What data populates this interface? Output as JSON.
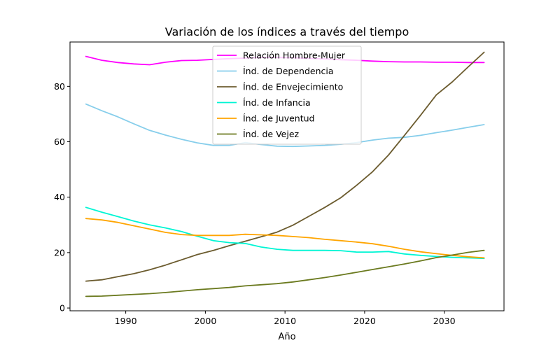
{
  "chart_data": {
    "type": "line",
    "title": "Variación de los índices a través del tiempo",
    "xlabel": "Año",
    "ylabel": "",
    "xlim": [
      1983,
      2037.5
    ],
    "ylim": [
      -1,
      96
    ],
    "xticks": [
      1990,
      2000,
      2010,
      2020,
      2030
    ],
    "yticks": [
      0,
      20,
      40,
      60,
      80
    ],
    "grid": false,
    "legend_position": "top-center",
    "x": [
      1985,
      1987,
      1989,
      1991,
      1993,
      1995,
      1997,
      1999,
      2001,
      2003,
      2005,
      2007,
      2009,
      2011,
      2013,
      2015,
      2017,
      2019,
      2021,
      2023,
      2025,
      2027,
      2029,
      2031,
      2033,
      2035
    ],
    "series": [
      {
        "name": "Relación Hombre-Mujer",
        "color": "#ff00ff",
        "values": [
          90.8,
          89.4,
          88.6,
          88.1,
          87.8,
          88.7,
          89.3,
          89.4,
          89.7,
          90.0,
          90.2,
          90.4,
          90.4,
          90.3,
          90.1,
          89.9,
          89.6,
          89.4,
          89.1,
          88.9,
          88.8,
          88.8,
          88.7,
          88.7,
          88.6,
          88.6
        ]
      },
      {
        "name": "Índ. de Dependencia",
        "color": "#87ceeb",
        "values": [
          73.6,
          71.2,
          69.0,
          66.5,
          64.1,
          62.4,
          60.9,
          59.6,
          58.7,
          58.7,
          59.7,
          59.0,
          58.4,
          58.3,
          58.5,
          58.7,
          59.1,
          59.7,
          60.6,
          61.3,
          61.6,
          62.3,
          63.3,
          64.2,
          65.2,
          66.2
        ]
      },
      {
        "name": "Índ. de Envejecimiento",
        "color": "#6b5b2e",
        "values": [
          9.7,
          10.2,
          11.3,
          12.4,
          13.8,
          15.5,
          17.4,
          19.3,
          20.8,
          22.5,
          24.1,
          25.7,
          27.4,
          29.9,
          33.1,
          36.3,
          39.8,
          44.3,
          49.2,
          55.2,
          62.3,
          69.5,
          76.9,
          81.6,
          87.0,
          92.3
        ]
      },
      {
        "name": "Índ. de Infancia",
        "color": "#00f5d4",
        "values": [
          36.3,
          34.6,
          33.0,
          31.4,
          30.0,
          28.9,
          27.6,
          25.9,
          24.3,
          23.6,
          23.3,
          22.0,
          21.2,
          20.8,
          20.8,
          20.8,
          20.7,
          20.2,
          20.2,
          20.4,
          19.5,
          19.0,
          18.6,
          18.3,
          18.1,
          17.9
        ]
      },
      {
        "name": "Índ. de Juventud",
        "color": "#ffa500",
        "values": [
          32.3,
          31.8,
          30.9,
          29.7,
          28.5,
          27.3,
          26.5,
          26.2,
          26.2,
          26.2,
          26.6,
          26.4,
          26.2,
          25.8,
          25.4,
          24.8,
          24.3,
          23.8,
          23.2,
          22.3,
          21.2,
          20.3,
          19.6,
          19.0,
          18.5,
          18.1
        ]
      },
      {
        "name": "Índ. de Vejez",
        "color": "#6b7a1f",
        "values": [
          4.2,
          4.3,
          4.6,
          4.9,
          5.2,
          5.6,
          6.1,
          6.6,
          7.0,
          7.4,
          8.0,
          8.4,
          8.8,
          9.4,
          10.2,
          11.0,
          11.9,
          12.9,
          13.9,
          14.9,
          15.9,
          17.0,
          18.2,
          19.1,
          20.1,
          20.8
        ]
      }
    ]
  }
}
